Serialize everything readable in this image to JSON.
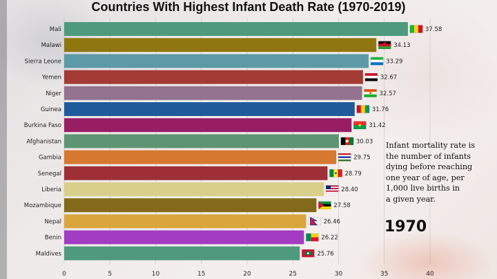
{
  "chart_data": {
    "type": "bar",
    "orientation": "horizontal",
    "title": "Countries With Highest Infant Death Rate (1970-2019)",
    "categories": [
      "Mali",
      "Malawi",
      "Sierra Leone",
      "Yemen",
      "Niger",
      "Guinea",
      "Burkina Faso",
      "Afghanistan",
      "Gambia",
      "Senegal",
      "Liberia",
      "Mozambique",
      "Nepal",
      "Benin",
      "Maldives"
    ],
    "values": [
      37.58,
      34.13,
      33.29,
      32.67,
      32.57,
      31.76,
      31.42,
      30.03,
      29.75,
      28.79,
      28.4,
      27.58,
      26.46,
      26.22,
      25.76
    ],
    "value_labels": [
      "37.58",
      "34.13",
      "33.29",
      "32.67",
      "32.57",
      "31.76",
      "31.42",
      "30.03",
      "29.75",
      "28.79",
      "28.40",
      "27.58",
      "26.46",
      "26.22",
      "25.76"
    ],
    "colors": [
      "#4f9a7c",
      "#8f760f",
      "#5b9aa6",
      "#a33a34",
      "#93738f",
      "#1f5a9a",
      "#981e64",
      "#5f9472",
      "#d6782f",
      "#9f2f36",
      "#d8d08a",
      "#826a1a",
      "#d9a63d",
      "#a23cc2",
      "#4f9a7c"
    ],
    "flag_icons": [
      "mali-flag-icon",
      "malawi-flag-icon",
      "sierra-leone-flag-icon",
      "yemen-flag-icon",
      "niger-flag-icon",
      "guinea-flag-icon",
      "burkina-faso-flag-icon",
      "afghanistan-flag-icon",
      "gambia-flag-icon",
      "senegal-flag-icon",
      "liberia-flag-icon",
      "mozambique-flag-icon",
      "nepal-flag-icon",
      "benin-flag-icon",
      "maldives-flag-icon"
    ],
    "x_ticks": [
      0,
      5,
      10,
      15,
      20,
      25,
      30,
      35,
      40
    ],
    "xlim": [
      0,
      40
    ],
    "grid": "vertical",
    "xlabel": "",
    "ylabel": ""
  },
  "annotation": {
    "note": "Infant mortality rate is\nthe number of infants\ndying before reaching\none year of age, per\n1,000 live births in\na given year.",
    "year": "1970"
  }
}
